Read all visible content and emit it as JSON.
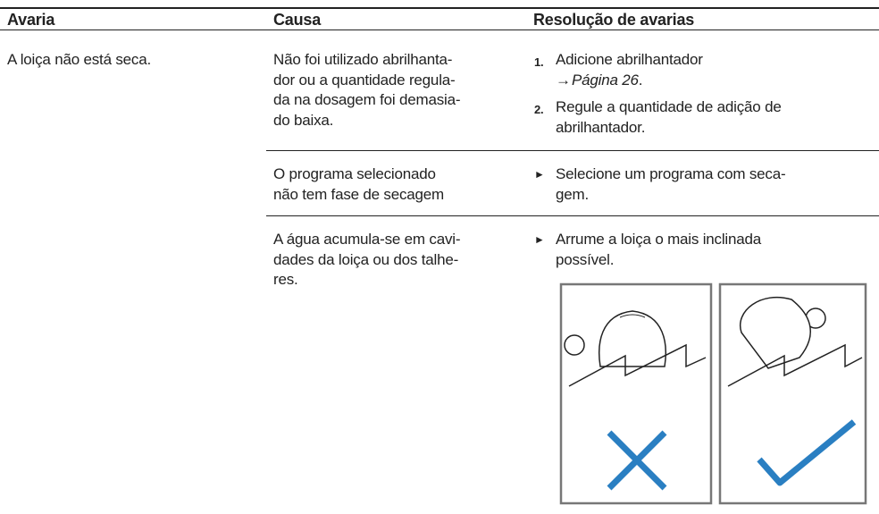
{
  "table": {
    "headers": [
      "Avaria",
      "Causa",
      "Resolução de avarias"
    ],
    "fault": "A loiça não está seca.",
    "rows": [
      {
        "cause": [
          "Não foi utilizado abrilhanta-",
          "dor ou a quantidade regula-",
          "da na dosagem foi demasia-",
          "do baixa."
        ],
        "steps": [
          {
            "marker": "1.",
            "lines": [
              "Adicione abrilhantador"
            ],
            "arrow": "→",
            "link": "Página 26",
            "after": "."
          },
          {
            "marker": "2.",
            "lines": [
              "Regule a quantidade de adição de",
              "abrilhantador."
            ]
          }
        ]
      },
      {
        "cause": [
          "O programa selecionado",
          "não tem fase de secagem"
        ],
        "steps": [
          {
            "marker": "►",
            "lines": [
              "Selecione um programa com seca-",
              "gem."
            ]
          }
        ]
      },
      {
        "cause": [
          "A água acumula-se em cavi-",
          "dades da loiça ou dos talhe-",
          "res."
        ],
        "steps": [
          {
            "marker": "►",
            "lines": [
              "Arrume a loiça o mais inclinada",
              "possível."
            ]
          }
        ]
      }
    ]
  }
}
